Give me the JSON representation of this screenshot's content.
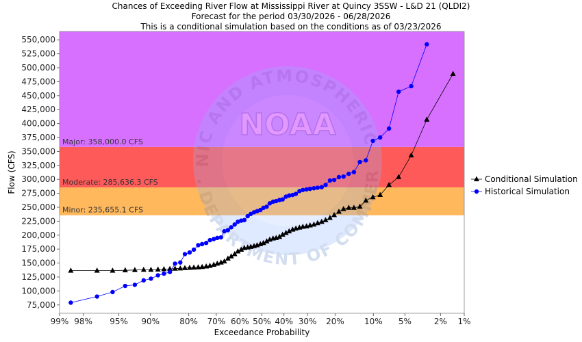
{
  "chart_data": {
    "type": "line",
    "title": [
      "Chances of Exceeding River Flow at Mississippi River at Quincy 3SSW - L&D 21 (QLDI2)",
      "Forecast for the period 03/30/2026 - 06/28/2026",
      "This is a conditional simulation based on the conditions as of 03/23/2026"
    ],
    "xlabel": "Exceedance Probability",
    "ylabel": "Flow (CFS)",
    "x_scale": "normal-probability",
    "x_ticks": [
      {
        "p": 0.99,
        "label": "99%"
      },
      {
        "p": 0.98,
        "label": "98%"
      },
      {
        "p": 0.95,
        "label": "95%"
      },
      {
        "p": 0.9,
        "label": "90%"
      },
      {
        "p": 0.8,
        "label": "80%"
      },
      {
        "p": 0.7,
        "label": "70%"
      },
      {
        "p": 0.6,
        "label": "60%"
      },
      {
        "p": 0.5,
        "label": "50%"
      },
      {
        "p": 0.4,
        "label": "40%"
      },
      {
        "p": 0.3,
        "label": "30%"
      },
      {
        "p": 0.2,
        "label": "20%"
      },
      {
        "p": 0.1,
        "label": "10%"
      },
      {
        "p": 0.05,
        "label": "5%"
      },
      {
        "p": 0.02,
        "label": "2%"
      },
      {
        "p": 0.01,
        "label": "1%"
      }
    ],
    "y_ticks": [
      {
        "v": 75000,
        "label": "75,000"
      },
      {
        "v": 100000,
        "label": "100,000"
      },
      {
        "v": 125000,
        "label": "125,000"
      },
      {
        "v": 150000,
        "label": "150,000"
      },
      {
        "v": 175000,
        "label": "175,000"
      },
      {
        "v": 200000,
        "label": "200,000"
      },
      {
        "v": 225000,
        "label": "225,000"
      },
      {
        "v": 250000,
        "label": "250,000"
      },
      {
        "v": 275000,
        "label": "275,000"
      },
      {
        "v": 300000,
        "label": "300,000"
      },
      {
        "v": 325000,
        "label": "325,000"
      },
      {
        "v": 350000,
        "label": "350,000"
      },
      {
        "v": 375000,
        "label": "375,000"
      },
      {
        "v": 400000,
        "label": "400,000"
      },
      {
        "v": 425000,
        "label": "425,000"
      },
      {
        "v": 450000,
        "label": "450,000"
      },
      {
        "v": 475000,
        "label": "475,000"
      },
      {
        "v": 500000,
        "label": "500,000"
      },
      {
        "v": 525000,
        "label": "525,000"
      },
      {
        "v": 550000,
        "label": "550,000"
      }
    ],
    "ylim": [
      60000,
      565000
    ],
    "grid": false,
    "legend_position": "right",
    "bands": [
      {
        "name": "Minor",
        "label": "Minor: 235,655.1 CFS",
        "from": 235655.1,
        "to": 285636.3,
        "color": "#ffb85c"
      },
      {
        "name": "Moderate",
        "label": "Moderate: 285,636.3 CFS",
        "from": 285636.3,
        "to": 358000.0,
        "color": "#ff5a5a"
      },
      {
        "name": "Major",
        "label": "Major: 358,000.0 CFS",
        "from": 358000.0,
        "to": 565000,
        "color": "#d870ff"
      }
    ],
    "series": [
      {
        "name": "Conditional Simulation",
        "marker": "triangle",
        "color": "#000000",
        "points": [
          [
            0.986,
            136500
          ],
          [
            0.971,
            136500
          ],
          [
            0.957,
            136500
          ],
          [
            0.942,
            137000
          ],
          [
            0.928,
            137500
          ],
          [
            0.913,
            138000
          ],
          [
            0.899,
            138000
          ],
          [
            0.884,
            138500
          ],
          [
            0.87,
            139000
          ],
          [
            0.855,
            139500
          ],
          [
            0.841,
            140000
          ],
          [
            0.826,
            140500
          ],
          [
            0.812,
            141000
          ],
          [
            0.797,
            141500
          ],
          [
            0.783,
            142000
          ],
          [
            0.768,
            142500
          ],
          [
            0.754,
            143000
          ],
          [
            0.739,
            144000
          ],
          [
            0.725,
            145000
          ],
          [
            0.71,
            147000
          ],
          [
            0.696,
            149000
          ],
          [
            0.681,
            151000
          ],
          [
            0.667,
            153000
          ],
          [
            0.652,
            158000
          ],
          [
            0.638,
            162000
          ],
          [
            0.623,
            166000
          ],
          [
            0.609,
            171000
          ],
          [
            0.594,
            174000
          ],
          [
            0.58,
            177000
          ],
          [
            0.565,
            178000
          ],
          [
            0.551,
            179000
          ],
          [
            0.536,
            180500
          ],
          [
            0.522,
            182000
          ],
          [
            0.507,
            184000
          ],
          [
            0.493,
            186000
          ],
          [
            0.478,
            189000
          ],
          [
            0.464,
            192000
          ],
          [
            0.449,
            194000
          ],
          [
            0.435,
            195000
          ],
          [
            0.42,
            197000
          ],
          [
            0.406,
            201000
          ],
          [
            0.391,
            204000
          ],
          [
            0.377,
            207000
          ],
          [
            0.362,
            210000
          ],
          [
            0.348,
            212000
          ],
          [
            0.333,
            213500
          ],
          [
            0.319,
            215000
          ],
          [
            0.304,
            216000
          ],
          [
            0.29,
            217500
          ],
          [
            0.275,
            219000
          ],
          [
            0.261,
            221500
          ],
          [
            0.246,
            224000
          ],
          [
            0.232,
            227000
          ],
          [
            0.217,
            231000
          ],
          [
            0.203,
            236000
          ],
          [
            0.188,
            242000
          ],
          [
            0.174,
            247000
          ],
          [
            0.159,
            249000
          ],
          [
            0.145,
            249000
          ],
          [
            0.13,
            251000
          ],
          [
            0.116,
            262000
          ],
          [
            0.101,
            268000
          ],
          [
            0.087,
            272000
          ],
          [
            0.072,
            290000
          ],
          [
            0.058,
            304000
          ],
          [
            0.043,
            343000
          ],
          [
            0.029,
            407000
          ],
          [
            0.014,
            489000
          ]
        ]
      },
      {
        "name": "Historical Simulation",
        "marker": "circle",
        "color": "#0000ff",
        "points": [
          [
            0.986,
            79000
          ],
          [
            0.971,
            90000
          ],
          [
            0.957,
            98000
          ],
          [
            0.942,
            109000
          ],
          [
            0.928,
            111000
          ],
          [
            0.913,
            119000
          ],
          [
            0.899,
            122000
          ],
          [
            0.884,
            128000
          ],
          [
            0.87,
            131000
          ],
          [
            0.855,
            134000
          ],
          [
            0.841,
            149000
          ],
          [
            0.826,
            151000
          ],
          [
            0.812,
            166000
          ],
          [
            0.797,
            169000
          ],
          [
            0.783,
            174000
          ],
          [
            0.768,
            182000
          ],
          [
            0.754,
            184000
          ],
          [
            0.739,
            186000
          ],
          [
            0.725,
            191000
          ],
          [
            0.71,
            193000
          ],
          [
            0.696,
            195000
          ],
          [
            0.681,
            196000
          ],
          [
            0.667,
            207000
          ],
          [
            0.652,
            209000
          ],
          [
            0.638,
            214000
          ],
          [
            0.623,
            219000
          ],
          [
            0.609,
            224000
          ],
          [
            0.594,
            226000
          ],
          [
            0.58,
            227000
          ],
          [
            0.565,
            234000
          ],
          [
            0.551,
            238000
          ],
          [
            0.536,
            241000
          ],
          [
            0.522,
            243000
          ],
          [
            0.507,
            245000
          ],
          [
            0.493,
            249000
          ],
          [
            0.478,
            251000
          ],
          [
            0.464,
            257000
          ],
          [
            0.449,
            260000
          ],
          [
            0.435,
            261000
          ],
          [
            0.42,
            263000
          ],
          [
            0.406,
            264000
          ],
          [
            0.391,
            269000
          ],
          [
            0.377,
            271000
          ],
          [
            0.362,
            272000
          ],
          [
            0.348,
            274000
          ],
          [
            0.333,
            279000
          ],
          [
            0.319,
            281000
          ],
          [
            0.304,
            282000
          ],
          [
            0.29,
            283000
          ],
          [
            0.275,
            284000
          ],
          [
            0.261,
            285000
          ],
          [
            0.246,
            286000
          ],
          [
            0.232,
            290000
          ],
          [
            0.217,
            298000
          ],
          [
            0.203,
            299000
          ],
          [
            0.188,
            304000
          ],
          [
            0.174,
            305000
          ],
          [
            0.159,
            310000
          ],
          [
            0.145,
            313000
          ],
          [
            0.13,
            331000
          ],
          [
            0.116,
            334000
          ],
          [
            0.101,
            369000
          ],
          [
            0.087,
            375000
          ],
          [
            0.072,
            391000
          ],
          [
            0.058,
            457000
          ],
          [
            0.043,
            467000
          ],
          [
            0.029,
            542000
          ]
        ]
      }
    ]
  },
  "watermark": {
    "logo": "NOAA",
    "text_top": "NATIONAL OCEANIC AND ATMOSPHERIC ADMINISTRATION",
    "text_bottom": "U.S. DEPARTMENT OF COMMERCE"
  }
}
